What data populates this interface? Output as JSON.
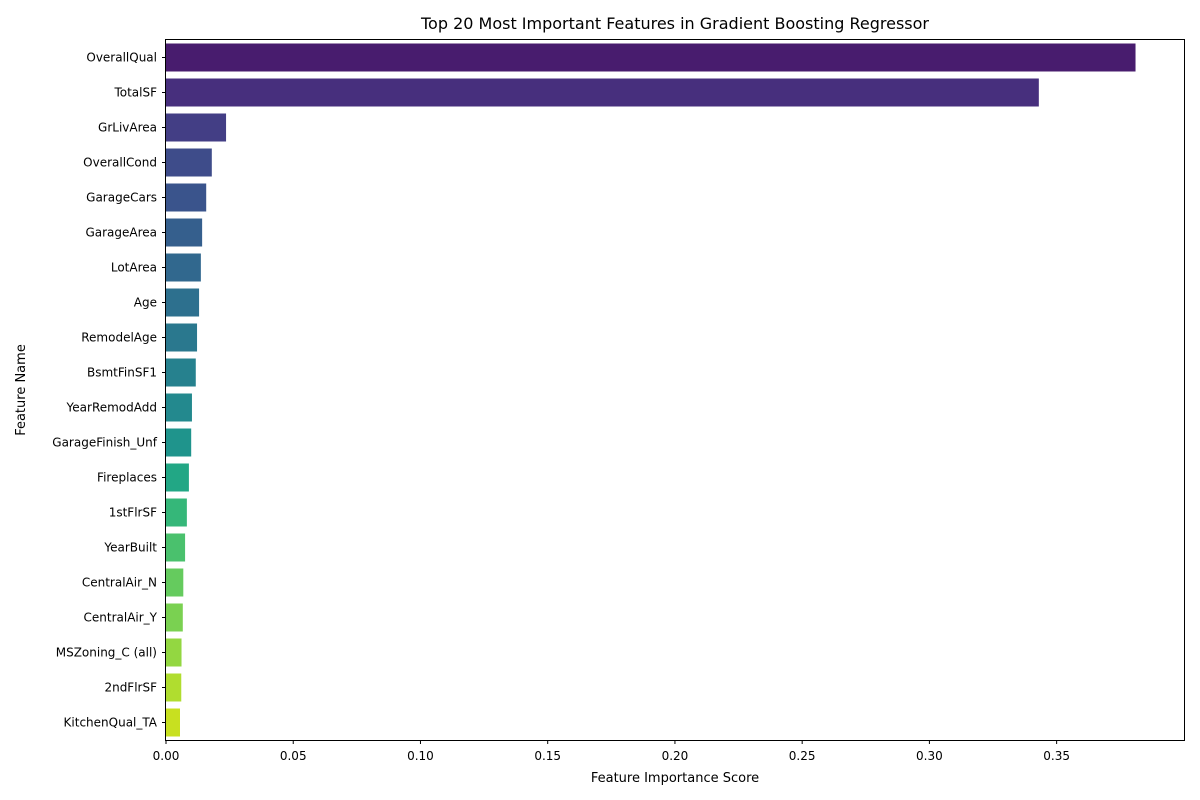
{
  "chart_data": {
    "type": "bar",
    "orientation": "horizontal",
    "title": "Top 20 Most Important Features in Gradient Boosting Regressor",
    "xlabel": "Feature Importance Score",
    "ylabel": "Feature Name",
    "xlim": [
      0,
      0.4
    ],
    "xticks": [
      0.0,
      0.05,
      0.1,
      0.15,
      0.2,
      0.25,
      0.3,
      0.35
    ],
    "xtick_labels": [
      "0.00",
      "0.05",
      "0.10",
      "0.15",
      "0.20",
      "0.25",
      "0.30",
      "0.35"
    ],
    "grid": false,
    "legend": "none",
    "palette": "viridis",
    "categories": [
      "OverallQual",
      "TotalSF",
      "GrLivArea",
      "OverallCond",
      "GarageCars",
      "GarageArea",
      "LotArea",
      "Age",
      "RemodelAge",
      "BsmtFinSF1",
      "YearRemodAdd",
      "GarageFinish_Unf",
      "Fireplaces",
      "1stFlrSF",
      "YearBuilt",
      "CentralAir_N",
      "CentralAir_Y",
      "MSZoning_C (all)",
      "2ndFlrSF",
      "KitchenQual_TA"
    ],
    "values": [
      0.381,
      0.343,
      0.0236,
      0.018,
      0.0158,
      0.0142,
      0.0137,
      0.013,
      0.0122,
      0.0117,
      0.0102,
      0.0099,
      0.009,
      0.0082,
      0.0075,
      0.0068,
      0.0066,
      0.0061,
      0.006,
      0.0055
    ],
    "colors": [
      "#481c6e",
      "#472f7d",
      "#433e85",
      "#3e4c8a",
      "#3a548c",
      "#355f8d",
      "#31688e",
      "#2d708e",
      "#2a788e",
      "#26818e",
      "#23898e",
      "#1f948c",
      "#22a785",
      "#35b779",
      "#4ac16d",
      "#65cb5e",
      "#7ad151",
      "#93d741",
      "#b0dd2f",
      "#c8e020"
    ]
  }
}
